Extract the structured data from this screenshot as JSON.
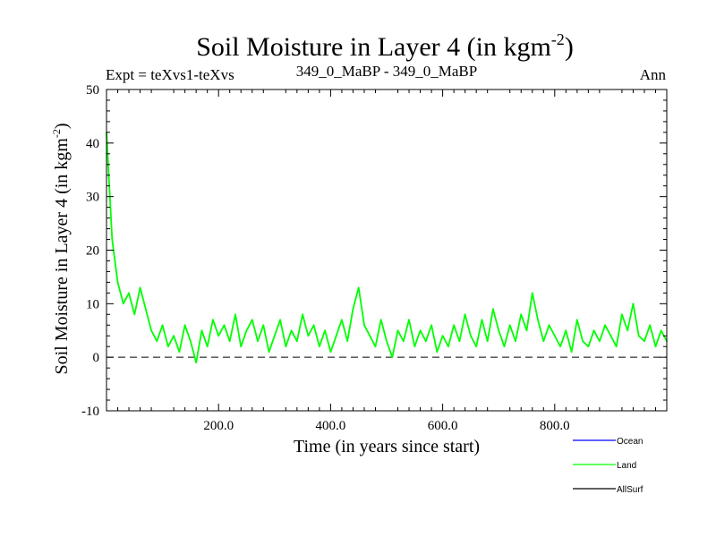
{
  "chart_data": {
    "type": "line",
    "title": "Soil Moisture in Layer 4 (in kgm",
    "title_exponent": "-2",
    "title_close": ")",
    "subtitle_left": "Expt = teXvs1-teXvs",
    "subtitle_center": "349_0_MaBP - 349_0_MaBP",
    "subtitle_right": "Ann",
    "xlabel": "Time (in years since start)",
    "ylabel": "Soil Moisture in Layer 4 (in kgm",
    "ylabel_exponent": "-2",
    "ylabel_close": ")",
    "xlim": [
      0,
      1000
    ],
    "ylim": [
      -10,
      50
    ],
    "x_ticks": [
      200,
      400,
      600,
      800
    ],
    "x_tick_labels": [
      "200.0",
      "400.0",
      "600.0",
      "800.0"
    ],
    "y_ticks": [
      -10,
      0,
      10,
      20,
      30,
      40,
      50
    ],
    "y_tick_labels": [
      "-10",
      "0",
      "10",
      "20",
      "30",
      "40",
      "50"
    ],
    "zero_line": 0,
    "legend": [
      {
        "name": "Ocean",
        "color": "#0000ff"
      },
      {
        "name": "Land",
        "color": "#00ff00"
      },
      {
        "name": "AllSurf",
        "color": "#000000"
      }
    ],
    "series": [
      {
        "name": "Land",
        "color": "#00ff00",
        "x": [
          0,
          10,
          20,
          30,
          40,
          50,
          60,
          70,
          80,
          90,
          100,
          110,
          120,
          130,
          140,
          150,
          160,
          170,
          180,
          190,
          200,
          210,
          220,
          230,
          240,
          250,
          260,
          270,
          280,
          290,
          300,
          310,
          320,
          330,
          340,
          350,
          360,
          370,
          380,
          390,
          400,
          410,
          420,
          430,
          440,
          450,
          460,
          470,
          480,
          490,
          500,
          510,
          520,
          530,
          540,
          550,
          560,
          570,
          580,
          590,
          600,
          610,
          620,
          630,
          640,
          650,
          660,
          670,
          680,
          690,
          700,
          710,
          720,
          730,
          740,
          750,
          760,
          770,
          780,
          790,
          800,
          810,
          820,
          830,
          840,
          850,
          860,
          870,
          880,
          890,
          900,
          910,
          920,
          930,
          940,
          950,
          960,
          970,
          980,
          990,
          1000
        ],
        "values": [
          42,
          22,
          14,
          10,
          12,
          8,
          13,
          9,
          5,
          3,
          6,
          2,
          4,
          1,
          6,
          3,
          -1,
          5,
          2,
          7,
          4,
          6,
          3,
          8,
          2,
          5,
          7,
          3,
          6,
          1,
          4,
          7,
          2,
          5,
          3,
          8,
          4,
          6,
          2,
          5,
          1,
          4,
          7,
          3,
          9,
          13,
          6,
          4,
          2,
          7,
          3,
          0,
          5,
          3,
          7,
          2,
          5,
          3,
          6,
          1,
          4,
          2,
          6,
          3,
          8,
          4,
          2,
          7,
          3,
          9,
          5,
          2,
          6,
          3,
          8,
          5,
          12,
          7,
          3,
          6,
          4,
          2,
          5,
          1,
          7,
          3,
          2,
          5,
          3,
          6,
          4,
          2,
          8,
          5,
          10,
          4,
          3,
          6,
          2,
          5,
          3
        ]
      }
    ]
  }
}
